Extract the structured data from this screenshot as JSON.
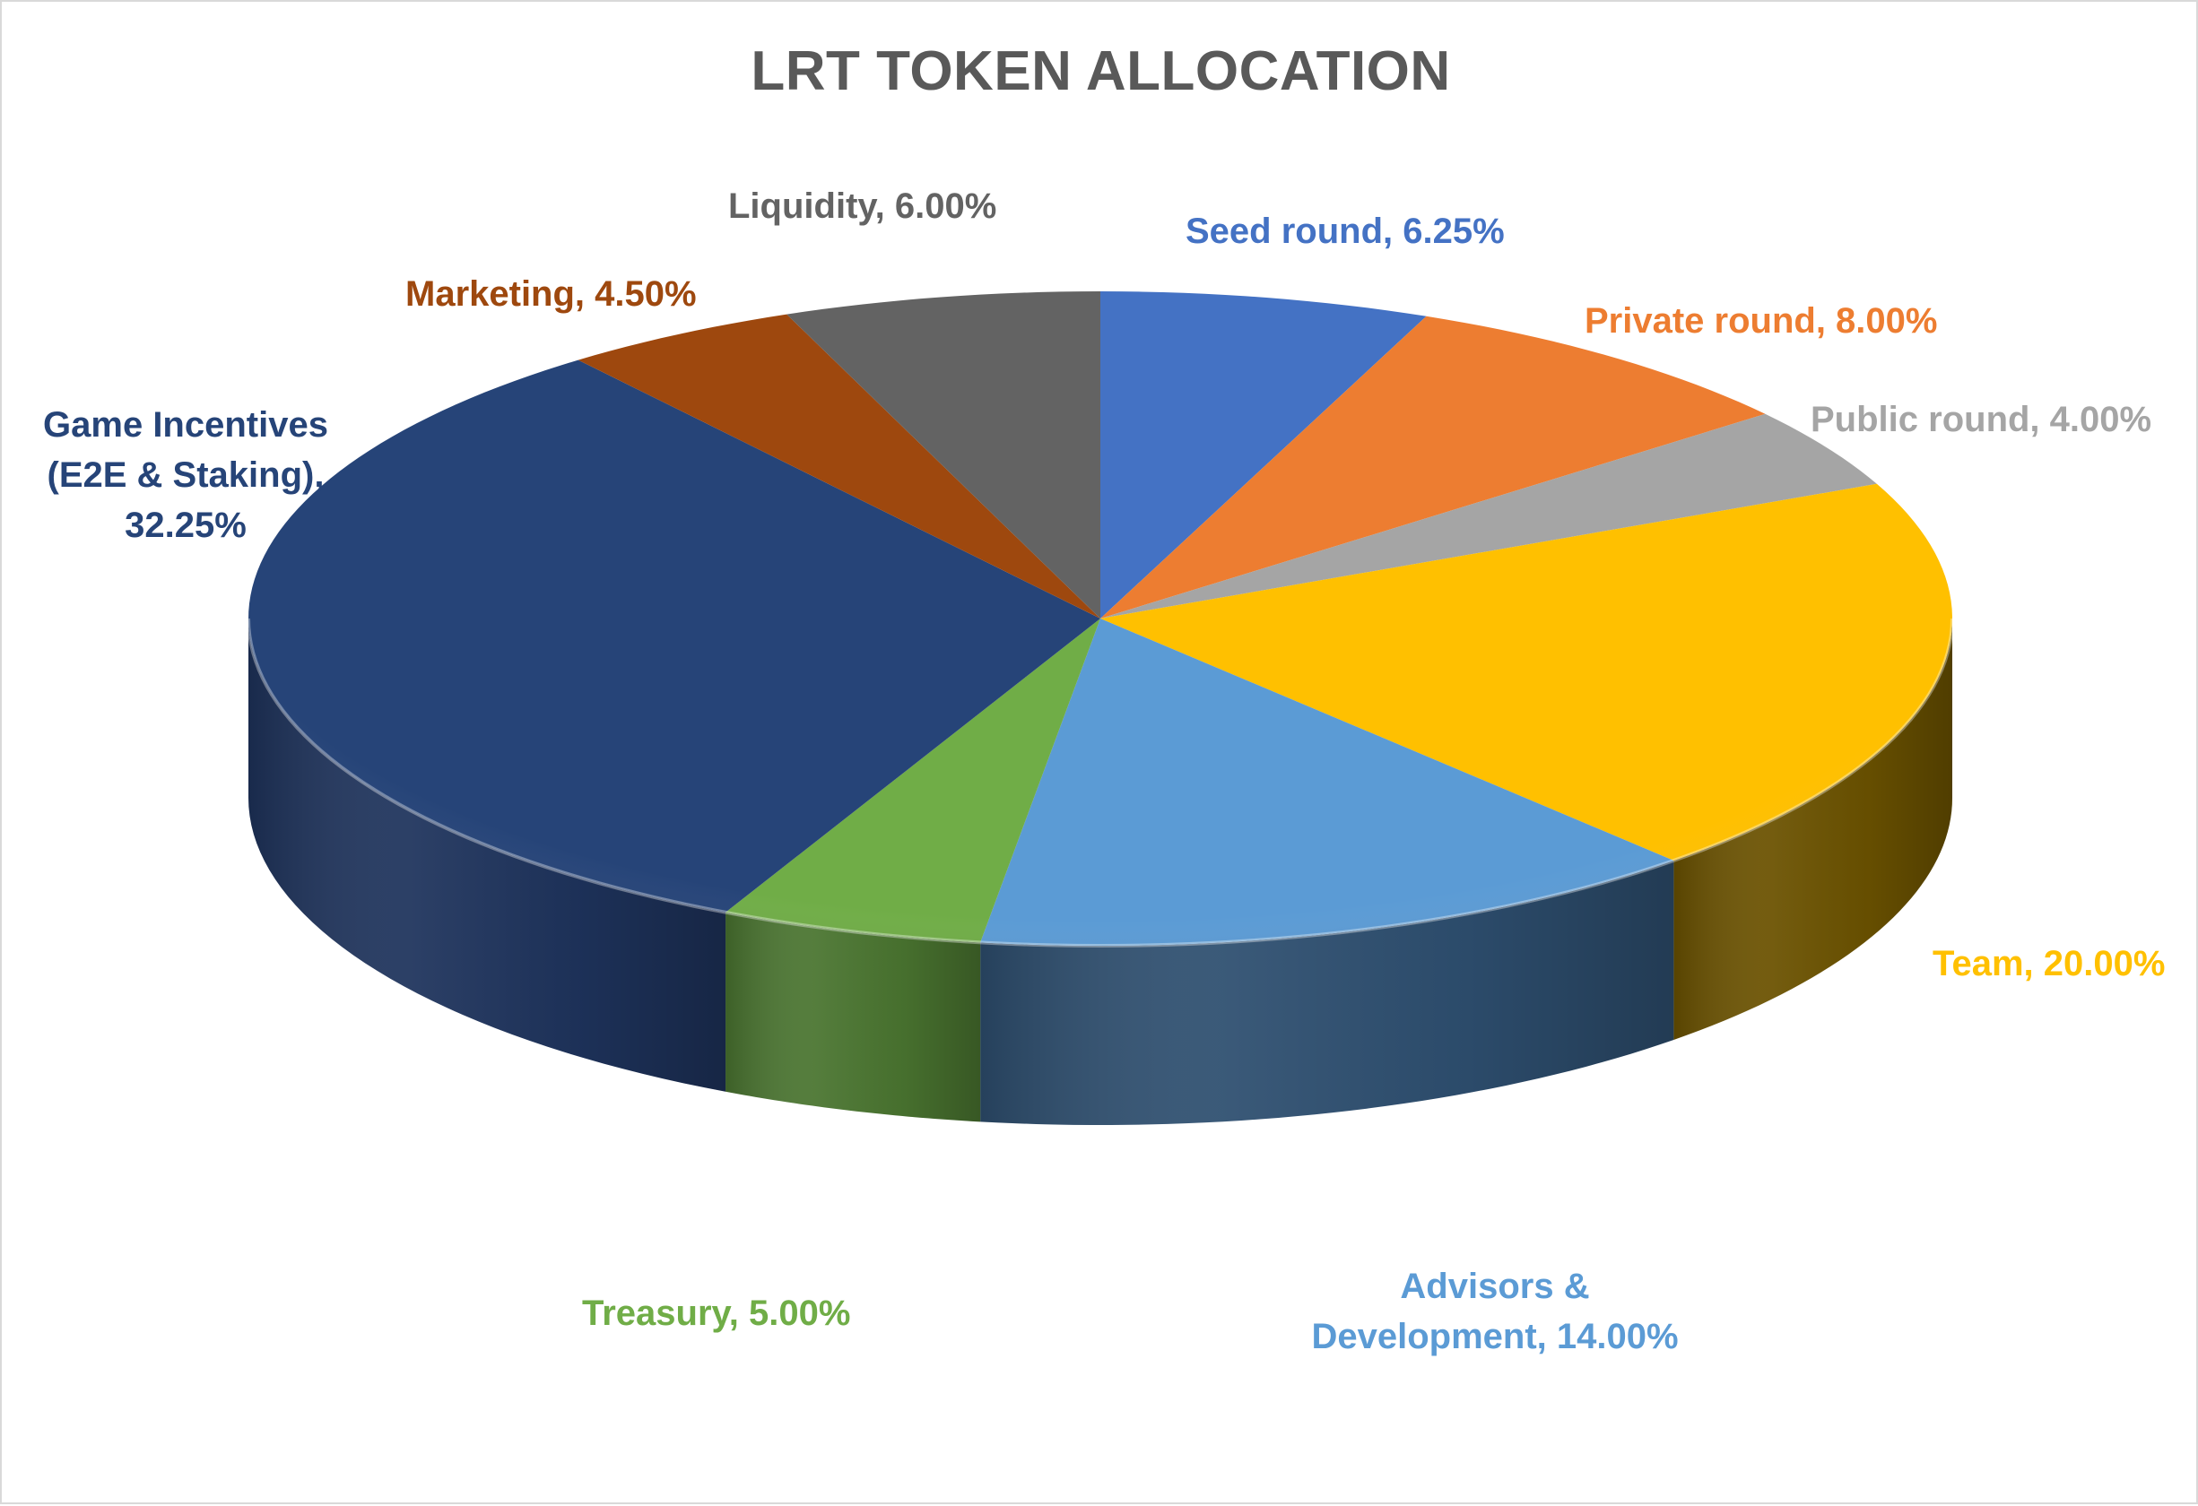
{
  "chart_data": {
    "type": "pie",
    "title": "LRT TOKEN ALLOCATION",
    "style": "3d",
    "slices": [
      {
        "label": "Seed round",
        "value": 6.25,
        "value_text": "6.25%",
        "color": "#4472C4",
        "side_color": "#2F5597"
      },
      {
        "label": "Private round",
        "value": 8.0,
        "value_text": "8.00%",
        "color": "#ED7D31",
        "side_color": "#A9561F"
      },
      {
        "label": "Public round",
        "value": 4.0,
        "value_text": "4.00%",
        "color": "#A5A5A5",
        "side_color": "#6E6E6E"
      },
      {
        "label": "Team",
        "value": 20.0,
        "value_text": "20.00%",
        "color": "#FFC000",
        "side_color": "#6B5200"
      },
      {
        "label": "Advisors & Development",
        "value": 14.0,
        "value_text": "14.00%",
        "color": "#5B9BD5",
        "side_color": "#2E4F70"
      },
      {
        "label": "Treasury",
        "value": 5.0,
        "value_text": "5.00%",
        "color": "#70AD47",
        "side_color": "#4A7530"
      },
      {
        "label": "Game Incentives (E2E & Staking)",
        "value": 32.25,
        "value_text": "32.25%",
        "color": "#264478",
        "side_color": "#1E335C"
      },
      {
        "label": "Marketing",
        "value": 4.5,
        "value_text": "4.50%",
        "color": "#9E480E",
        "side_color": "#6A300A"
      },
      {
        "label": "Liquidity",
        "value": 6.0,
        "value_text": "6.00%",
        "color": "#636363",
        "side_color": "#404040"
      }
    ]
  },
  "labels": {
    "seed": "Seed round, 6.25%",
    "private": "Private round, 8.00%",
    "public": "Public round, 4.00%",
    "team": "Team, 20.00%",
    "advisors_line1": "Advisors &",
    "advisors_line2": "Development, 14.00%",
    "treasury": "Treasury, 5.00%",
    "game_line1": "Game Incentives",
    "game_line2": "(E2E & Staking),",
    "game_line3": "32.25%",
    "marketing": "Marketing, 4.50%",
    "liquidity": "Liquidity, 6.00%"
  }
}
